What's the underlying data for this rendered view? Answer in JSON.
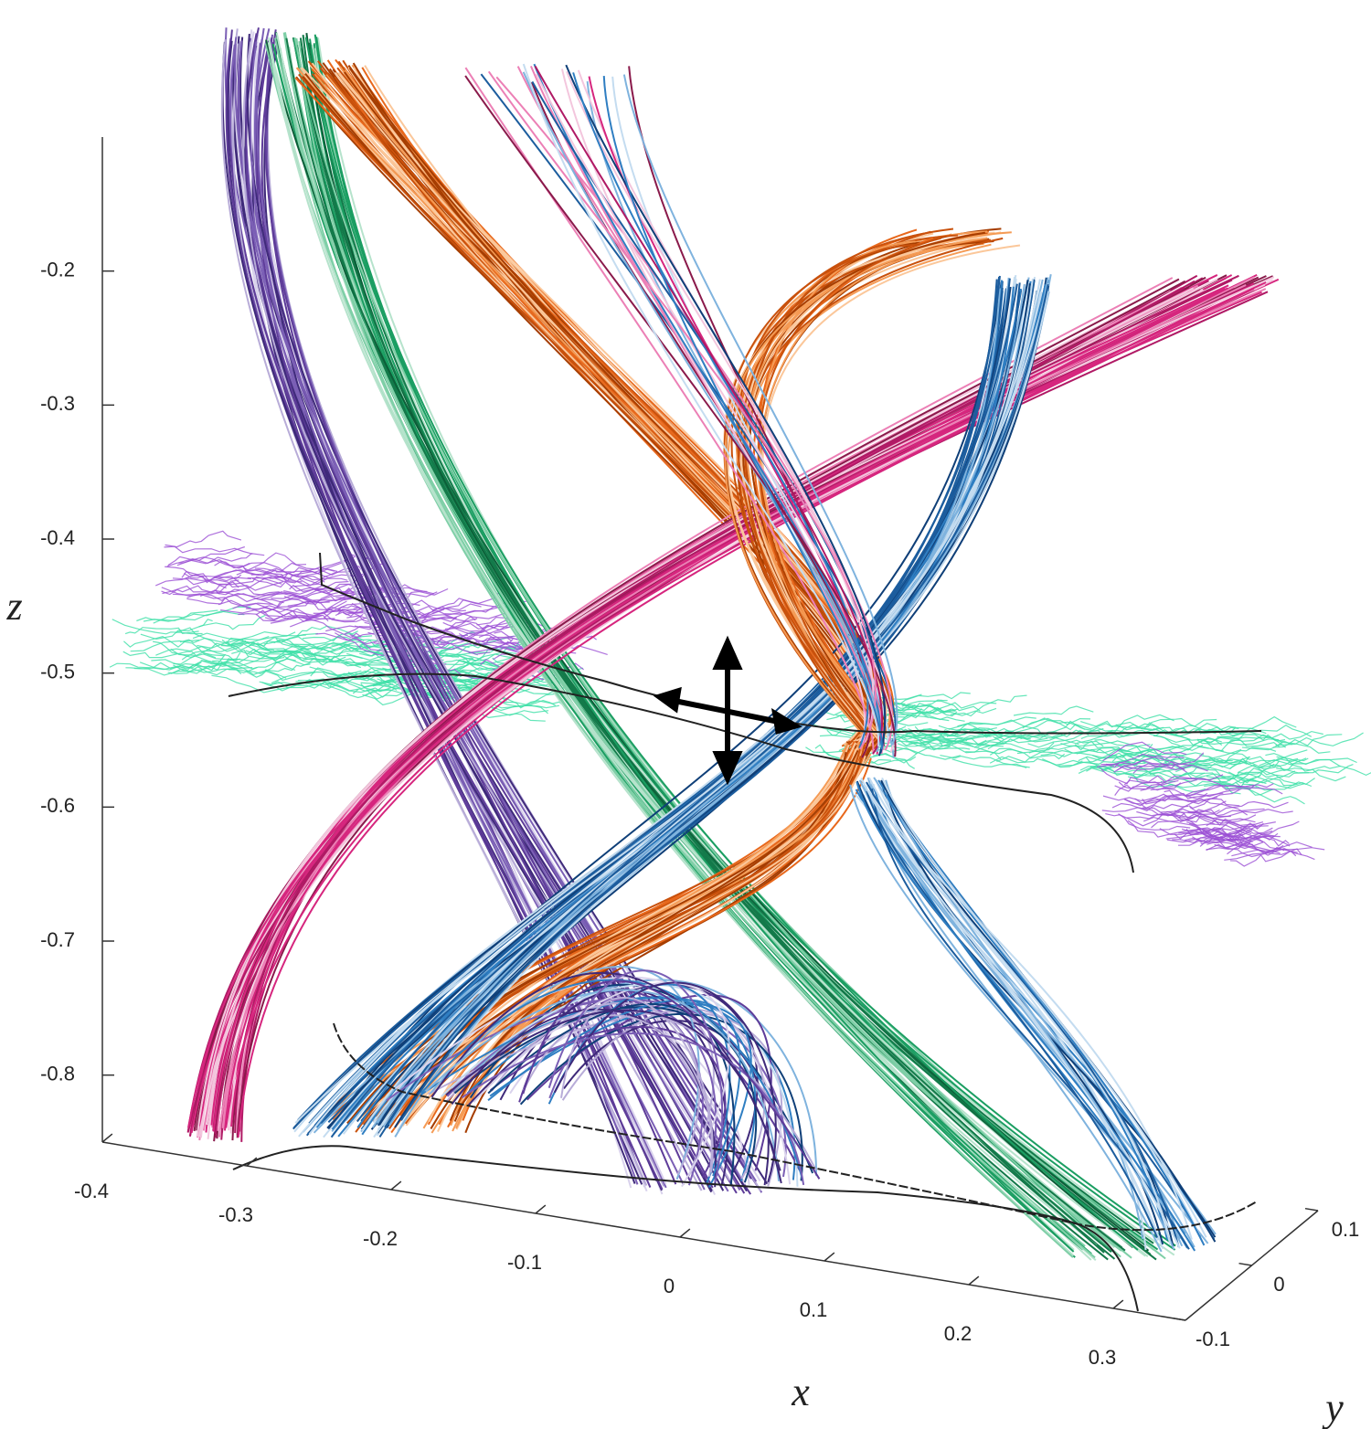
{
  "chart_data": {
    "type": "line3d",
    "xlabel": "x",
    "ylabel": "y",
    "zlabel": "z",
    "xlim": [
      -0.4,
      0.35
    ],
    "ylim": [
      -0.1,
      0.1
    ],
    "zlim": [
      -0.85,
      -0.1
    ],
    "xticks": [
      -0.4,
      -0.3,
      -0.2,
      -0.1,
      0,
      0.1,
      0.2,
      0.3
    ],
    "yticks": [
      -0.1,
      0,
      0.1
    ],
    "zticks": [
      -0.8,
      -0.7,
      -0.6,
      -0.5,
      -0.4,
      -0.3,
      -0.2
    ]
  }
}
